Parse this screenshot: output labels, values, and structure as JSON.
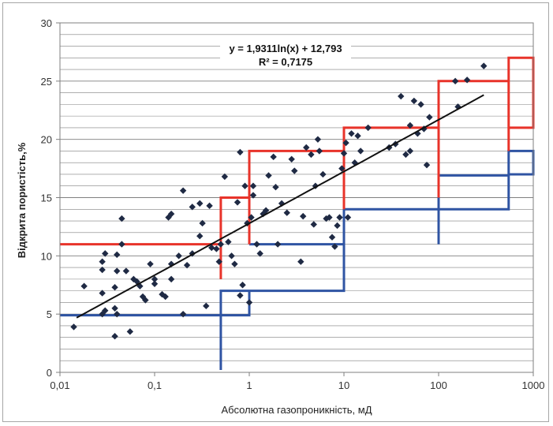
{
  "chart_data": {
    "type": "scatter",
    "title": "",
    "xlabel": "Абсолютна газопроникність, мД",
    "ylabel": "Відкрита пористість,%",
    "x_scale": "log",
    "xlim": [
      0.01,
      1000
    ],
    "ylim": [
      0,
      30
    ],
    "x_ticks": [
      "0,01",
      "0,1",
      "1",
      "10",
      "100",
      "1000"
    ],
    "y_ticks": [
      "0",
      "5",
      "10",
      "15",
      "20",
      "25",
      "30"
    ],
    "grid": "horizontal, every 1 unit",
    "trendline": {
      "equation_text": "y = 1,9311ln(x) + 12,793",
      "r2_text": "R² = 0,7175",
      "a": 1.9311,
      "b": 12.793,
      "x_range": [
        0.015,
        300
      ]
    },
    "colors": {
      "points": "#1f2a44",
      "trend": "#111111",
      "red_bounds": "#e8332a",
      "blue_bounds": "#2f54a3",
      "grid": "#7f7f7f"
    },
    "series": [
      {
        "name": "",
        "points": [
          [
            0.014,
            3.9
          ],
          [
            0.018,
            7.4
          ],
          [
            0.028,
            9.5
          ],
          [
            0.028,
            8.8
          ],
          [
            0.028,
            6.8
          ],
          [
            0.03,
            5.3
          ],
          [
            0.028,
            5.0
          ],
          [
            0.03,
            10.2
          ],
          [
            0.038,
            3.1
          ],
          [
            0.038,
            5.5
          ],
          [
            0.038,
            7.3
          ],
          [
            0.04,
            10.1
          ],
          [
            0.04,
            5.0
          ],
          [
            0.04,
            8.7
          ],
          [
            0.045,
            13.2
          ],
          [
            0.045,
            11.0
          ],
          [
            0.05,
            8.7
          ],
          [
            0.055,
            3.5
          ],
          [
            0.06,
            8.0
          ],
          [
            0.065,
            7.8
          ],
          [
            0.07,
            7.4
          ],
          [
            0.075,
            6.5
          ],
          [
            0.08,
            6.2
          ],
          [
            0.09,
            9.3
          ],
          [
            0.1,
            8.0
          ],
          [
            0.1,
            7.6
          ],
          [
            0.12,
            6.7
          ],
          [
            0.13,
            6.5
          ],
          [
            0.14,
            13.3
          ],
          [
            0.15,
            13.6
          ],
          [
            0.15,
            9.3
          ],
          [
            0.15,
            8.0
          ],
          [
            0.18,
            10.0
          ],
          [
            0.2,
            15.6
          ],
          [
            0.2,
            5.0
          ],
          [
            0.22,
            9.2
          ],
          [
            0.25,
            14.2
          ],
          [
            0.25,
            10.2
          ],
          [
            0.3,
            11.7
          ],
          [
            0.3,
            14.5
          ],
          [
            0.32,
            12.8
          ],
          [
            0.35,
            5.7
          ],
          [
            0.38,
            14.3
          ],
          [
            0.4,
            10.7
          ],
          [
            0.45,
            10.6
          ],
          [
            0.48,
            9.5
          ],
          [
            0.5,
            11.0
          ],
          [
            0.55,
            16.8
          ],
          [
            0.6,
            11.2
          ],
          [
            0.65,
            10.0
          ],
          [
            0.7,
            9.3
          ],
          [
            0.75,
            14.6
          ],
          [
            0.8,
            18.9
          ],
          [
            0.8,
            6.6
          ],
          [
            0.85,
            7.5
          ],
          [
            0.9,
            16.0
          ],
          [
            0.95,
            12.8
          ],
          [
            1.0,
            6.0
          ],
          [
            1.05,
            13.3
          ],
          [
            1.1,
            16.0
          ],
          [
            1.1,
            15.2
          ],
          [
            1.2,
            11.0
          ],
          [
            1.3,
            10.2
          ],
          [
            1.4,
            13.6
          ],
          [
            1.5,
            13.9
          ],
          [
            1.6,
            16.9
          ],
          [
            1.8,
            18.5
          ],
          [
            1.9,
            15.9
          ],
          [
            2.0,
            11.0
          ],
          [
            2.2,
            14.5
          ],
          [
            2.5,
            13.7
          ],
          [
            2.8,
            18.3
          ],
          [
            3.0,
            17.3
          ],
          [
            3.5,
            9.5
          ],
          [
            3.7,
            13.4
          ],
          [
            4.0,
            19.3
          ],
          [
            4.5,
            18.7
          ],
          [
            4.8,
            12.7
          ],
          [
            5.0,
            16.0
          ],
          [
            5.3,
            20.0
          ],
          [
            5.5,
            19.0
          ],
          [
            6.0,
            17.0
          ],
          [
            6.5,
            13.2
          ],
          [
            7.0,
            13.3
          ],
          [
            7.5,
            11.6
          ],
          [
            8.0,
            10.8
          ],
          [
            8.5,
            12.6
          ],
          [
            9.0,
            13.3
          ],
          [
            9.5,
            17.5
          ],
          [
            10.0,
            18.8
          ],
          [
            10.5,
            19.7
          ],
          [
            11.0,
            13.3
          ],
          [
            12.0,
            20.5
          ],
          [
            13.0,
            18.0
          ],
          [
            14.0,
            20.3
          ],
          [
            15.0,
            19.0
          ],
          [
            18.0,
            21.0
          ],
          [
            30.0,
            19.3
          ],
          [
            35.0,
            19.6
          ],
          [
            40.0,
            23.7
          ],
          [
            45.0,
            18.7
          ],
          [
            50.0,
            19.0
          ],
          [
            50.0,
            21.2
          ],
          [
            55.0,
            23.3
          ],
          [
            60.0,
            20.5
          ],
          [
            65.0,
            23.0
          ],
          [
            70.0,
            20.9
          ],
          [
            75.0,
            17.8
          ],
          [
            80.0,
            21.9
          ],
          [
            150.0,
            25.0
          ],
          [
            160.0,
            22.8
          ],
          [
            200.0,
            25.1
          ],
          [
            300.0,
            26.3
          ]
        ]
      }
    ],
    "red_bounds": [
      [
        0.01,
        11
      ],
      [
        0.5,
        11
      ],
      [
        0.5,
        8
      ],
      [
        0.5,
        15
      ],
      [
        1,
        15
      ],
      [
        1,
        11
      ],
      [
        1,
        19
      ],
      [
        10,
        19
      ],
      [
        10,
        14
      ],
      [
        10,
        21
      ],
      [
        100,
        21
      ],
      [
        100,
        15
      ],
      [
        100,
        25
      ],
      [
        550,
        25
      ],
      [
        550,
        19
      ],
      [
        550,
        27
      ],
      [
        1000,
        27
      ],
      [
        1000,
        21
      ],
      [
        550,
        21
      ]
    ],
    "blue_bounds": [
      [
        0.01,
        4.9
      ],
      [
        1,
        4.9
      ],
      [
        1,
        5.6
      ],
      [
        1,
        7
      ],
      [
        0.5,
        7
      ],
      [
        0.5,
        0.2
      ],
      [
        0.5,
        7
      ],
      [
        1,
        7
      ],
      [
        10,
        7
      ],
      [
        10,
        11
      ],
      [
        1,
        11
      ],
      [
        10,
        11
      ],
      [
        10,
        14
      ],
      [
        100,
        14
      ],
      [
        100,
        11
      ],
      [
        100,
        16.9
      ],
      [
        550,
        16.9
      ],
      [
        550,
        14
      ],
      [
        100,
        14
      ],
      [
        550,
        14
      ],
      [
        550,
        19
      ],
      [
        1000,
        19
      ],
      [
        1000,
        17
      ],
      [
        550,
        17
      ]
    ]
  }
}
